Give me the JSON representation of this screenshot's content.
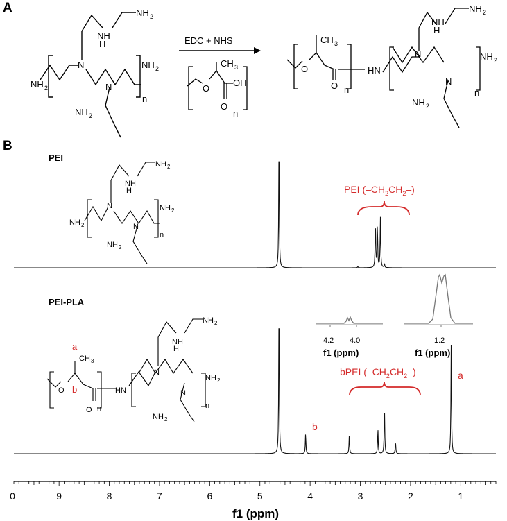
{
  "panel_a": {
    "letter": "A",
    "reagents": "EDC + NHS",
    "reactant_pei": {
      "nh2_top": "NH",
      "h": "H",
      "nh2_right": "NH",
      "nh2_left": "NH",
      "nh2_bottom": "NH",
      "n": "N",
      "sub2": "2",
      "rep": "n"
    },
    "reactant_pla": {
      "ch3": "CH",
      "sub3": "3",
      "o": "O",
      "oh": "OH",
      "carbonyl": "O",
      "rep": "n"
    },
    "product": {
      "ch3": "CH",
      "sub3": "3",
      "o": "O",
      "carbonyl": "O",
      "rep_pla": "n",
      "hn": "HN",
      "nh2_top": "NH",
      "h": "H",
      "nh2_right": "NH",
      "nh2_bottom": "NH",
      "n": "N",
      "sub2": "2",
      "rep_pei": "n"
    }
  },
  "panel_b": {
    "letter": "B",
    "pei_label": "PEI",
    "pei_pla_label": "PEI-PLA",
    "pei_bracket_label": "PEI (–CH",
    "pei_bracket_label_mid": "CH",
    "pei_bracket_label_end": "–)",
    "bpei_bracket_label": "bPEI (–CH",
    "bpei_bracket_label_mid": "CH",
    "bpei_bracket_label_end": "–)",
    "sub2": "2",
    "peak_a": "a",
    "peak_b": "b",
    "struct_a": "a",
    "struct_b": "b",
    "inset1": {
      "ticks": [
        "4.2",
        "4.0"
      ],
      "title": "f1 (ppm)"
    },
    "inset2": {
      "ticks": [
        "1.2"
      ],
      "title": "f1 (ppm)"
    }
  },
  "chart_data": {
    "type": "line",
    "xlabel": "f1 (ppm)",
    "xlim": [
      9.9,
      0.3
    ],
    "x_ticks": [
      0,
      9,
      8,
      7,
      6,
      5,
      4,
      3,
      2,
      1
    ],
    "series": [
      {
        "name": "PEI",
        "peaks": [
          {
            "ppm": 4.62,
            "rel_height": 1.0
          },
          {
            "ppm": 3.05,
            "rel_height": 0.01
          },
          {
            "ppm": 2.7,
            "rel_height": 0.35
          },
          {
            "ppm": 2.66,
            "rel_height": 0.32
          },
          {
            "ppm": 2.6,
            "rel_height": 0.38
          },
          {
            "ppm": 2.52,
            "rel_height": 0.03
          }
        ]
      },
      {
        "name": "PEI-PLA",
        "peaks": [
          {
            "ppm": 4.62,
            "rel_height": 1.0
          },
          {
            "ppm": 4.09,
            "rel_height": 0.13
          },
          {
            "ppm": 3.22,
            "rel_height": 0.12
          },
          {
            "ppm": 2.65,
            "rel_height": 0.16
          },
          {
            "ppm": 2.52,
            "rel_height": 0.31
          },
          {
            "ppm": 2.3,
            "rel_height": 0.08
          },
          {
            "ppm": 1.19,
            "rel_height": 0.71
          }
        ]
      }
    ]
  }
}
